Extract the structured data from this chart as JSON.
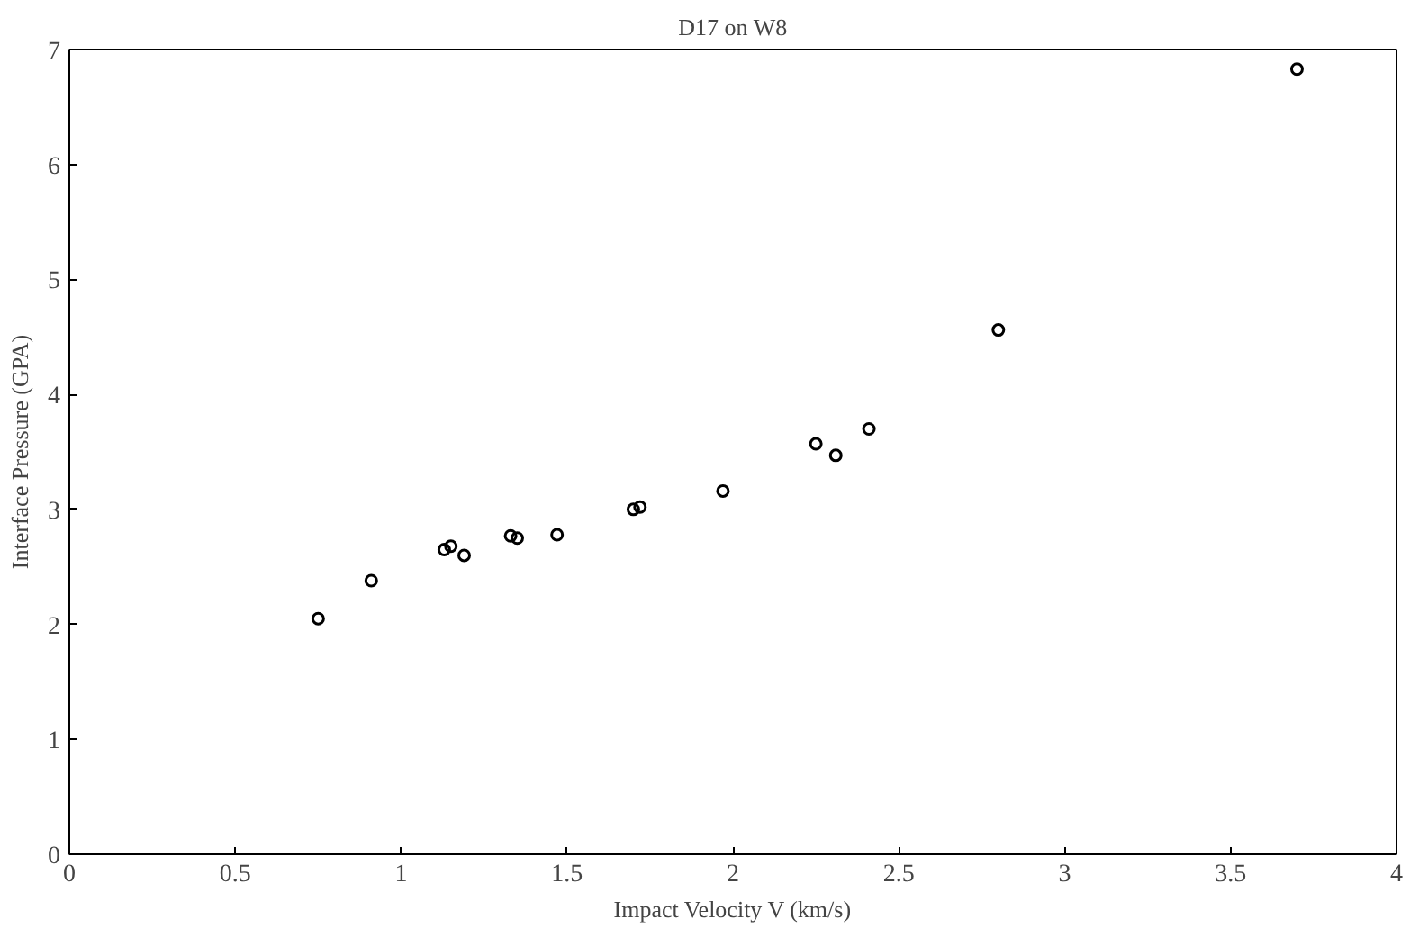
{
  "chart_data": {
    "type": "scatter",
    "title": "D17 on W8",
    "xlabel": "Impact Velocity V (km/s)",
    "ylabel": "Interface Pressure (GPA)",
    "x": [
      0.75,
      0.91,
      1.13,
      1.15,
      1.19,
      1.33,
      1.35,
      1.47,
      1.7,
      1.72,
      1.97,
      2.25,
      2.31,
      2.41,
      2.8,
      3.7
    ],
    "series": [
      {
        "color": "#000000",
        "values": [
          2.05,
          2.38,
          2.65,
          2.68,
          2.6,
          2.77,
          2.75,
          2.78,
          3.0,
          3.02,
          3.16,
          3.57,
          3.47,
          3.7,
          4.56,
          6.83
        ]
      }
    ],
    "xlim": [
      0,
      4
    ],
    "xticks": [
      0,
      0.5,
      1,
      1.5,
      2,
      2.5,
      3,
      3.5,
      4
    ],
    "ylim": [
      0,
      7
    ],
    "yticks": [
      0,
      1,
      2,
      3,
      4,
      5,
      6,
      7
    ],
    "marker": "circle",
    "grid": false
  }
}
